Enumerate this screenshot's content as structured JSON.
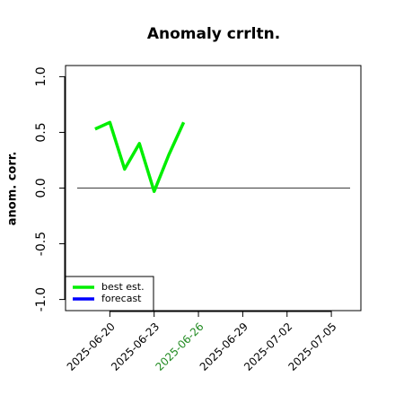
{
  "chart_data": {
    "type": "line",
    "title": "Anomaly crrltn.",
    "y_label": "anom. corr.",
    "x": [
      "2025-06-19",
      "2025-06-20",
      "2025-06-21",
      "2025-06-22",
      "2025-06-23",
      "2025-06-24",
      "2025-06-25"
    ],
    "series": [
      {
        "name": "best est.",
        "color": "#00ee00",
        "values": [
          0.53,
          0.59,
          0.17,
          0.4,
          -0.03,
          0.3,
          0.59
        ]
      },
      {
        "name": "forecast",
        "color": "#0000ff",
        "values": [
          null,
          null,
          null,
          null,
          null,
          null,
          null
        ]
      }
    ],
    "hline": 0,
    "xlim": [
      "2025-06-17",
      "2025-07-07"
    ],
    "xticks": [
      "2025-06-20",
      "2025-06-23",
      "2025-06-26",
      "2025-06-29",
      "2025-07-02",
      "2025-07-05"
    ],
    "highlight_xtick": "2025-06-26",
    "highlight_color": "#228b22",
    "ylim": [
      -1.1,
      1.1
    ],
    "yticks": [
      {
        "value": -1,
        "label": "-1.0"
      },
      {
        "value": -0.5,
        "label": "-0.5"
      },
      {
        "value": 0,
        "label": "0.0"
      },
      {
        "value": 0.5,
        "label": "0.5"
      },
      {
        "value": 1,
        "label": "1.0"
      }
    ],
    "legend": "bottom-left"
  }
}
